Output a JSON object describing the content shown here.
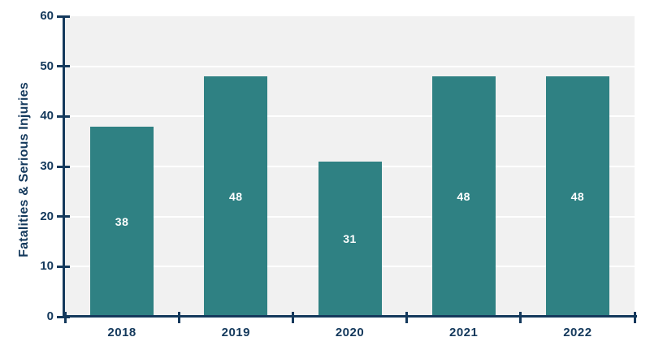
{
  "chart_data": {
    "type": "bar",
    "title": "",
    "xlabel": "",
    "ylabel": "Fatalities & Serious Injuries",
    "categories": [
      "2018",
      "2019",
      "2020",
      "2021",
      "2022"
    ],
    "values": [
      38,
      48,
      31,
      48,
      48
    ],
    "bar_labels": [
      "38",
      "48",
      "31",
      "48",
      "48"
    ],
    "ylim": [
      0,
      60
    ],
    "yticks": [
      0,
      10,
      20,
      30,
      40,
      50,
      60
    ],
    "grid": "horizontal-white",
    "legend": "none",
    "bar_label_position": "center",
    "colors": {
      "bar": "#2f8183",
      "axis": "#14395c",
      "tick_label": "#14395c",
      "bar_label": "#ffffff",
      "plot_background": "#f1f1f1",
      "gridline": "#ffffff",
      "page_background": "#ffffff"
    }
  }
}
